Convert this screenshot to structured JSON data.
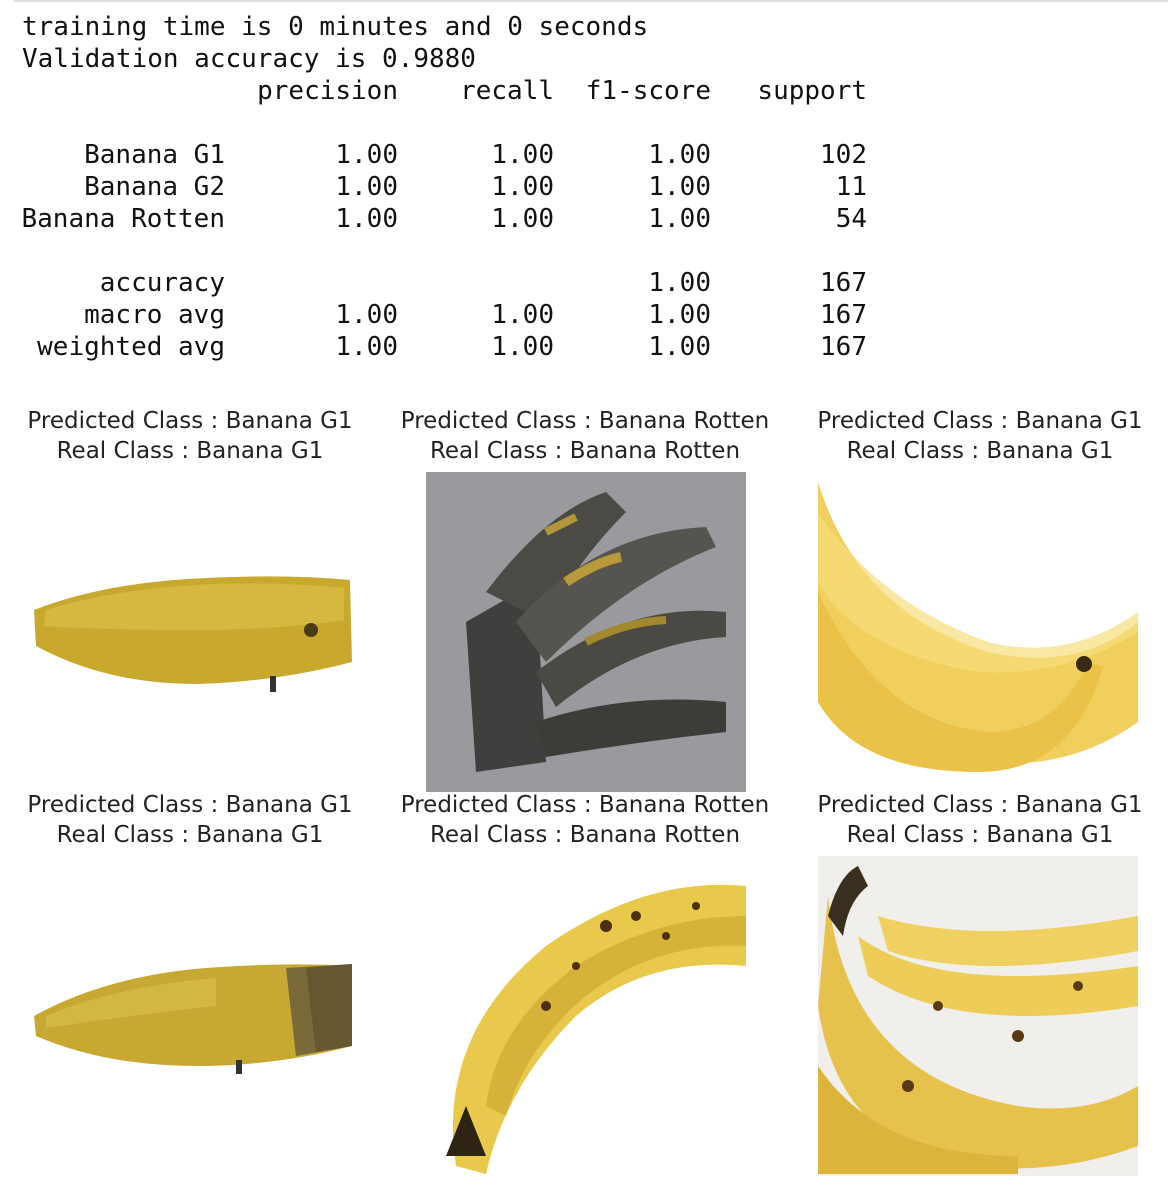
{
  "output": {
    "training_time": "training time is 0 minutes and 0 seconds",
    "validation_accuracy": "Validation accuracy is 0.9880"
  },
  "report": {
    "headers": {
      "precision": "precision",
      "recall": "recall",
      "f1": "f1-score",
      "support": "support"
    },
    "class_rows": [
      {
        "label": "Banana G1",
        "precision": "1.00",
        "recall": "1.00",
        "f1": "1.00",
        "support": "102"
      },
      {
        "label": "Banana G2",
        "precision": "1.00",
        "recall": "1.00",
        "f1": "1.00",
        "support": "11"
      },
      {
        "label": "Banana Rotten",
        "precision": "1.00",
        "recall": "1.00",
        "f1": "1.00",
        "support": "54"
      }
    ],
    "summary_rows": [
      {
        "label": "accuracy",
        "precision": "",
        "recall": "",
        "f1": "1.00",
        "support": "167"
      },
      {
        "label": "macro avg",
        "precision": "1.00",
        "recall": "1.00",
        "f1": "1.00",
        "support": "167"
      },
      {
        "label": "weighted avg",
        "precision": "1.00",
        "recall": "1.00",
        "f1": "1.00",
        "support": "167"
      }
    ]
  },
  "predictions": [
    {
      "predicted": "Predicted Class : Banana G1",
      "real": "Real Class : Banana G1"
    },
    {
      "predicted": "Predicted Class : Banana Rotten",
      "real": "Real Class : Banana Rotten"
    },
    {
      "predicted": "Predicted Class : Banana G1",
      "real": "Real Class : Banana G1"
    },
    {
      "predicted": "Predicted Class : Banana G1",
      "real": "Real Class : Banana G1"
    },
    {
      "predicted": "Predicted Class : Banana Rotten",
      "real": "Real Class : Banana Rotten"
    },
    {
      "predicted": "Predicted Class : Banana G1",
      "real": "Real Class : Banana G1"
    }
  ]
}
